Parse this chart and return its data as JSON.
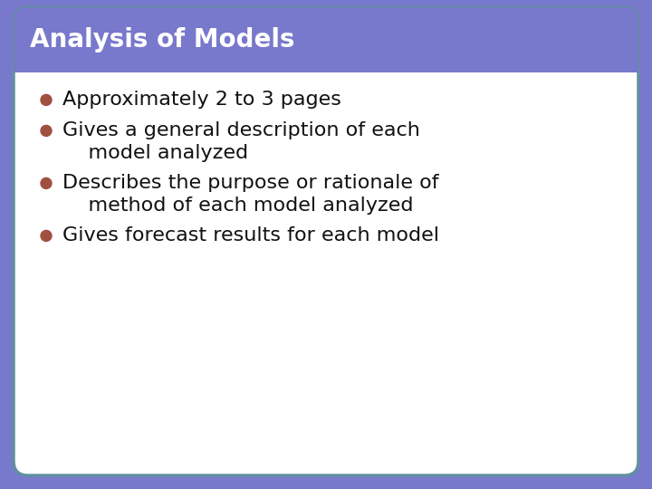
{
  "title": "Analysis of Models",
  "title_bg_color": "#7878cc",
  "title_text_color": "#ffffff",
  "title_fontsize": 20,
  "title_font_weight": "bold",
  "underline_color": "#ffffff",
  "body_bg_color": "#ffffff",
  "border_color": "#6090a0",
  "bullet_color": "#a05040",
  "bullet_text_color": "#111111",
  "bullet_fontsize": 16,
  "bullets": [
    [
      "Approximately 2 to 3 pages"
    ],
    [
      "Gives a general description of each",
      "    model analyzed"
    ],
    [
      "Describes the purpose or rationale of",
      "    method of each model analyzed"
    ],
    [
      "Gives forecast results for each model"
    ]
  ],
  "fig_bg_color": "#7878cc",
  "fig_width": 7.2,
  "fig_height": 5.4,
  "dpi": 100
}
